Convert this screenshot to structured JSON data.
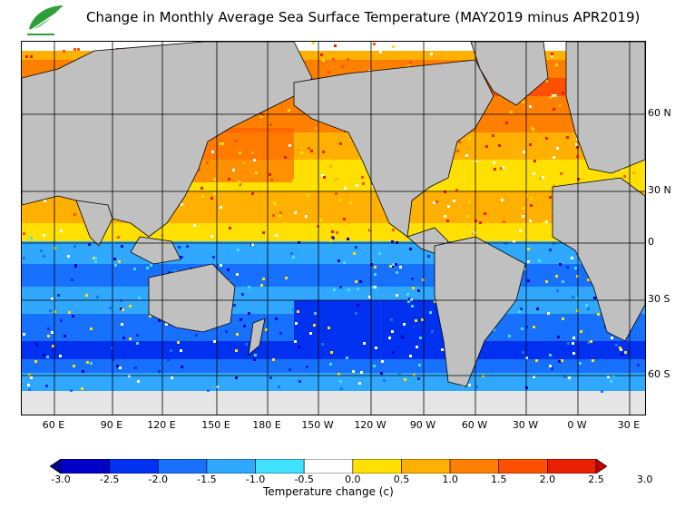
{
  "title": "Change in Monthly Average Sea Surface Temperature (MAY2019 minus APR2019)",
  "logo": {
    "icon": "leaf-logo-icon",
    "color": "#2e9e3a"
  },
  "map": {
    "land_color": "#c0c0c0",
    "ice_color": "#e6e6e6",
    "lat_labels": [
      "60 N",
      "30 N",
      "0",
      "30 S",
      "60 S"
    ],
    "lon_labels": [
      "60 E",
      "90 E",
      "120 E",
      "150 E",
      "180 E",
      "150 W",
      "120 W",
      "90 W",
      "60 W",
      "30 W",
      "0 W",
      "30 E"
    ]
  },
  "colorbar": {
    "colors": [
      "#000090",
      "#0000c8",
      "#0030f0",
      "#1870ff",
      "#30a8ff",
      "#40e0ff",
      "#ffffff",
      "#ffe000",
      "#ffb000",
      "#ff8000",
      "#ff5000",
      "#e82000",
      "#c00000"
    ],
    "tick_labels": [
      "-3.0",
      "-2.5",
      "-2.0",
      "-1.5",
      "-1.0",
      "-0.5",
      "0.0",
      "0.5",
      "1.0",
      "1.5",
      "2.0",
      "2.5",
      "3.0"
    ],
    "label": "Temperature change  (c)"
  }
}
